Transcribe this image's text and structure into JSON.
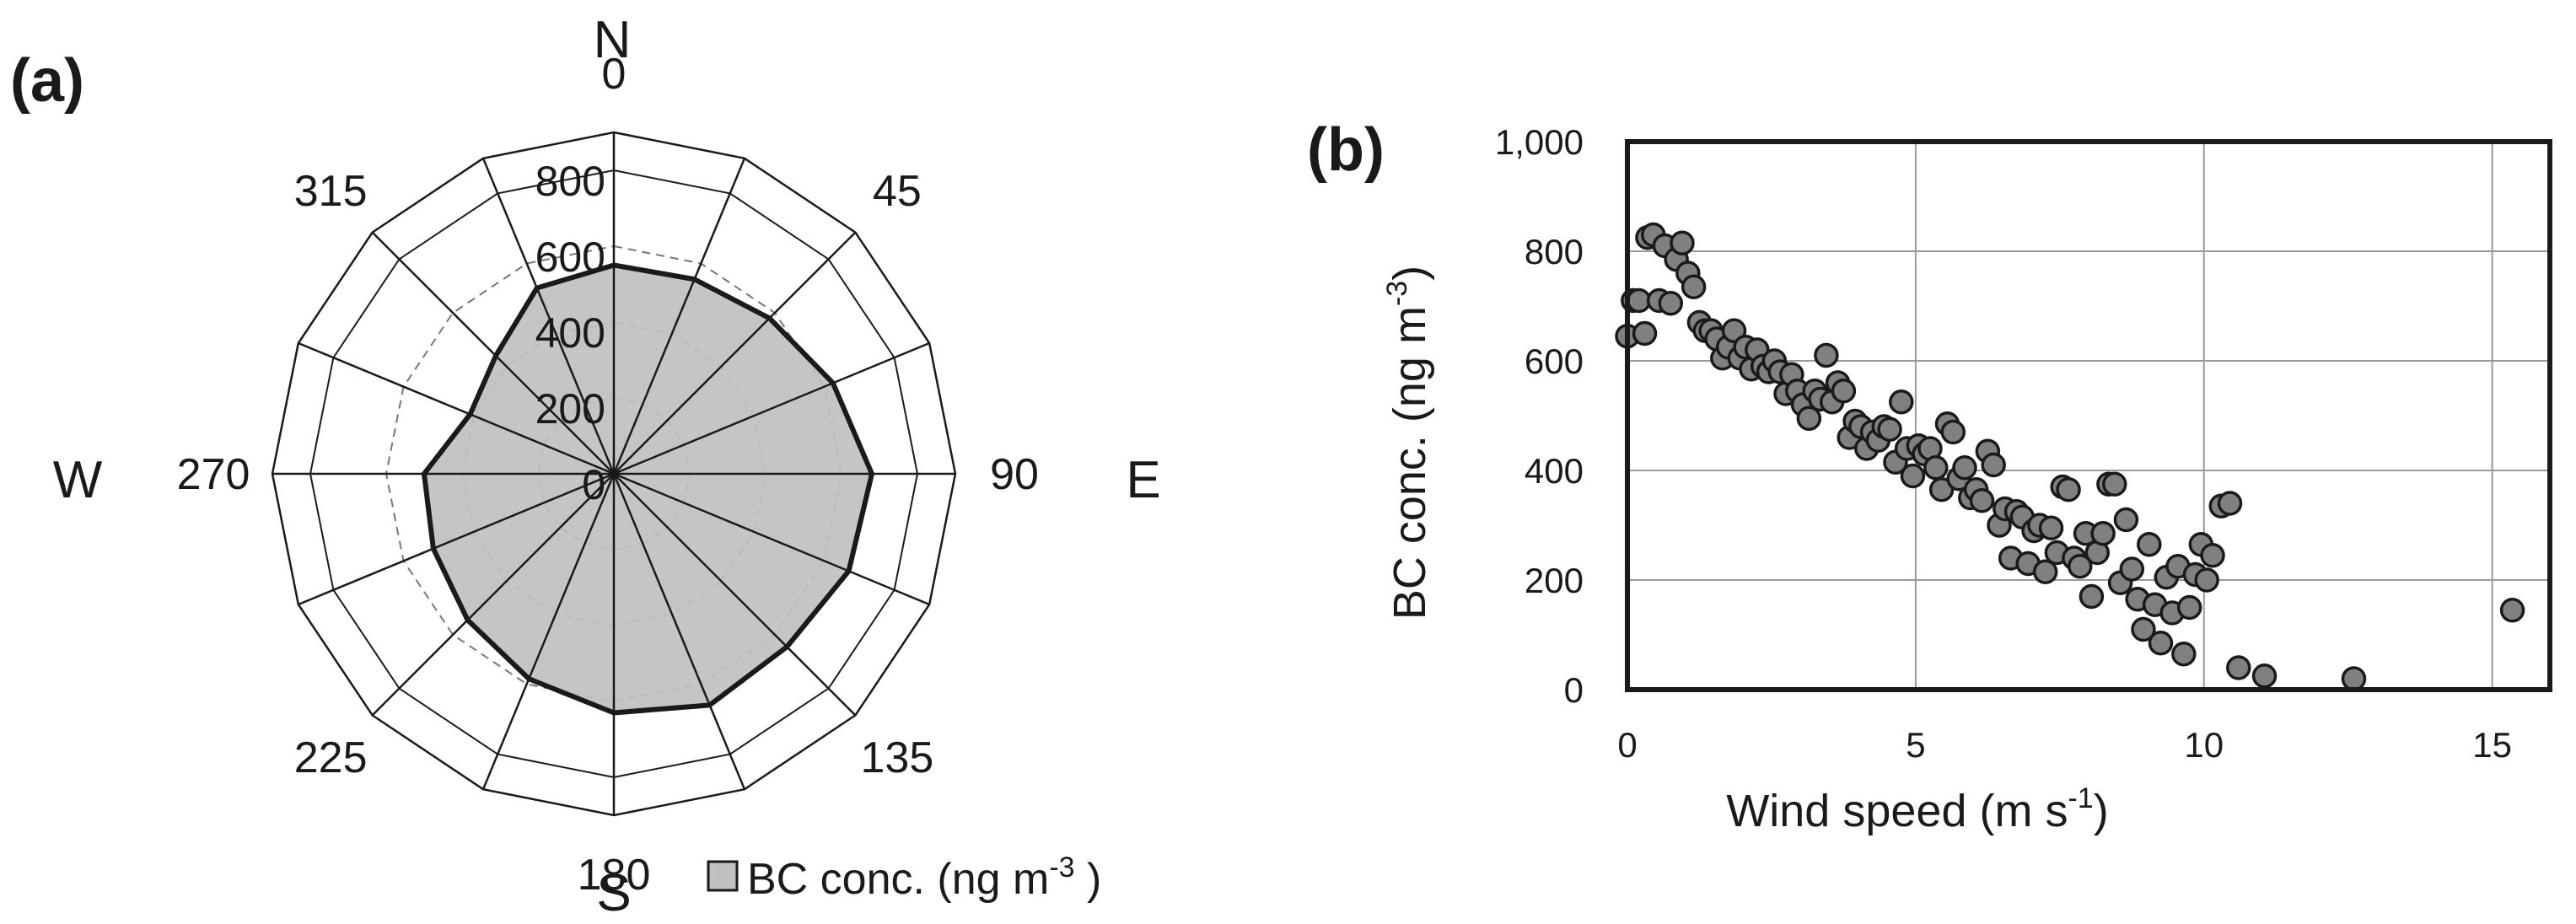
{
  "chart_data": [
    {
      "type": "radar",
      "panel_label": "(a)",
      "compass": {
        "north": "N",
        "east": "E",
        "south": "S",
        "west": "W"
      },
      "direction_tick_labels": [
        "0",
        "45",
        "90",
        "135",
        "180",
        "225",
        "270",
        "315"
      ],
      "direction_tick_degrees": [
        0,
        45,
        90,
        135,
        180,
        225,
        270,
        315
      ],
      "radial_tick_labels": [
        "0",
        "200",
        "400",
        "600",
        "800"
      ],
      "radial_tick_values": [
        0,
        200,
        400,
        600,
        800
      ],
      "rlim": [
        0,
        800
      ],
      "n_sectors": 16,
      "legend": {
        "label": "BC conc. (ng m",
        "superscript": "-3",
        "suffix": " )",
        "color": "#c0c0c0"
      },
      "series": [
        {
          "name": "BC conc. (ng m-3 )",
          "directions_deg": [
            0,
            22.5,
            45,
            67.5,
            90,
            112.5,
            135,
            157.5,
            180,
            202.5,
            225,
            247.5,
            270,
            292.5,
            315,
            337.5
          ],
          "values": [
            550,
            555,
            580,
            625,
            680,
            670,
            645,
            660,
            630,
            585,
            545,
            515,
            500,
            410,
            440,
            530
          ]
        }
      ]
    },
    {
      "type": "scatter",
      "panel_label": "(b)",
      "xlabel": "Wind speed (m s",
      "xlabel_sup": "-1",
      "xlabel_suffix": ")",
      "ylabel": "BC conc.  (ng m",
      "ylabel_sup": "-3",
      "ylabel_suffix": ")",
      "xlim": [
        0,
        16
      ],
      "ylim": [
        0,
        1000
      ],
      "xticks": [
        0,
        5,
        10,
        15
      ],
      "xtick_labels": [
        "0",
        "5",
        "10",
        "15"
      ],
      "yticks": [
        0,
        200,
        400,
        600,
        800,
        1000
      ],
      "ytick_labels": [
        "0",
        "200",
        "400",
        "600",
        "800",
        "1,000"
      ],
      "grid": true,
      "point_color": "#808080",
      "points": [
        [
          0.0,
          645
        ],
        [
          0.1,
          710
        ],
        [
          0.2,
          710
        ],
        [
          0.3,
          650
        ],
        [
          0.35,
          825
        ],
        [
          0.45,
          830
        ],
        [
          0.55,
          710
        ],
        [
          0.65,
          810
        ],
        [
          0.75,
          705
        ],
        [
          0.85,
          785
        ],
        [
          0.95,
          815
        ],
        [
          1.05,
          760
        ],
        [
          1.15,
          735
        ],
        [
          1.25,
          670
        ],
        [
          1.35,
          655
        ],
        [
          1.45,
          655
        ],
        [
          1.55,
          640
        ],
        [
          1.65,
          605
        ],
        [
          1.75,
          625
        ],
        [
          1.85,
          655
        ],
        [
          1.95,
          605
        ],
        [
          2.05,
          625
        ],
        [
          2.15,
          585
        ],
        [
          2.25,
          620
        ],
        [
          2.35,
          590
        ],
        [
          2.45,
          580
        ],
        [
          2.55,
          600
        ],
        [
          2.65,
          580
        ],
        [
          2.75,
          540
        ],
        [
          2.85,
          575
        ],
        [
          2.95,
          545
        ],
        [
          3.05,
          520
        ],
        [
          3.15,
          495
        ],
        [
          3.25,
          545
        ],
        [
          3.35,
          530
        ],
        [
          3.45,
          610
        ],
        [
          3.55,
          525
        ],
        [
          3.65,
          560
        ],
        [
          3.75,
          545
        ],
        [
          3.85,
          460
        ],
        [
          3.95,
          490
        ],
        [
          4.05,
          480
        ],
        [
          4.15,
          440
        ],
        [
          4.25,
          470
        ],
        [
          4.35,
          455
        ],
        [
          4.45,
          480
        ],
        [
          4.55,
          475
        ],
        [
          4.65,
          415
        ],
        [
          4.75,
          525
        ],
        [
          4.85,
          440
        ],
        [
          4.95,
          390
        ],
        [
          5.05,
          445
        ],
        [
          5.15,
          430
        ],
        [
          5.25,
          440
        ],
        [
          5.35,
          405
        ],
        [
          5.45,
          365
        ],
        [
          5.55,
          485
        ],
        [
          5.65,
          470
        ],
        [
          5.75,
          385
        ],
        [
          5.85,
          405
        ],
        [
          5.95,
          350
        ],
        [
          6.05,
          365
        ],
        [
          6.15,
          345
        ],
        [
          6.25,
          435
        ],
        [
          6.35,
          410
        ],
        [
          6.45,
          300
        ],
        [
          6.55,
          330
        ],
        [
          6.65,
          240
        ],
        [
          6.75,
          325
        ],
        [
          6.85,
          315
        ],
        [
          6.95,
          230
        ],
        [
          7.05,
          290
        ],
        [
          7.15,
          300
        ],
        [
          7.25,
          215
        ],
        [
          7.35,
          295
        ],
        [
          7.45,
          250
        ],
        [
          7.55,
          370
        ],
        [
          7.65,
          365
        ],
        [
          7.75,
          240
        ],
        [
          7.85,
          225
        ],
        [
          7.95,
          285
        ],
        [
          8.05,
          170
        ],
        [
          8.15,
          250
        ],
        [
          8.25,
          285
        ],
        [
          8.35,
          375
        ],
        [
          8.45,
          375
        ],
        [
          8.55,
          195
        ],
        [
          8.65,
          310
        ],
        [
          8.75,
          220
        ],
        [
          8.85,
          165
        ],
        [
          8.95,
          110
        ],
        [
          9.05,
          265
        ],
        [
          9.15,
          155
        ],
        [
          9.25,
          85
        ],
        [
          9.35,
          205
        ],
        [
          9.45,
          140
        ],
        [
          9.55,
          225
        ],
        [
          9.65,
          65
        ],
        [
          9.75,
          150
        ],
        [
          9.85,
          210
        ],
        [
          9.95,
          265
        ],
        [
          10.05,
          200
        ],
        [
          10.15,
          245
        ],
        [
          10.3,
          335
        ],
        [
          10.45,
          340
        ],
        [
          10.6,
          40
        ],
        [
          11.05,
          25
        ],
        [
          12.6,
          20
        ],
        [
          15.35,
          145
        ]
      ]
    }
  ]
}
